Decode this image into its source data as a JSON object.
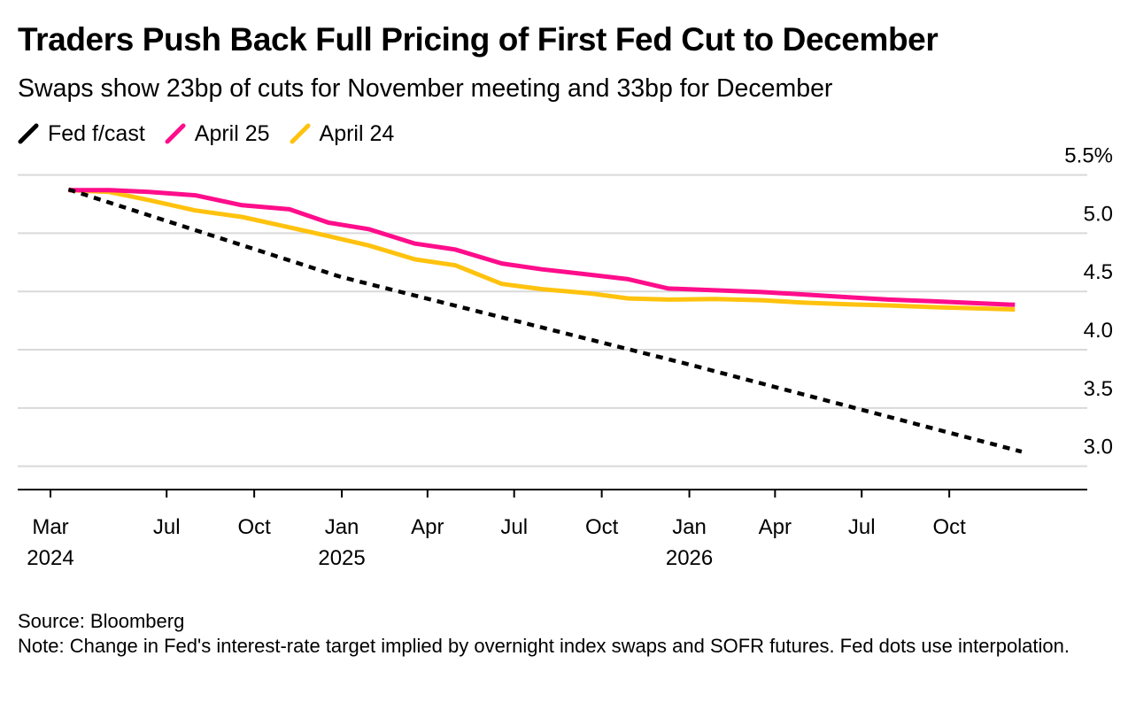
{
  "title": "Traders Push Back Full Pricing of First Fed Cut to December",
  "subtitle": "Swaps show 23bp of cuts for November meeting and 33bp for December",
  "legend": [
    {
      "label": "Fed f/cast",
      "color": "#000000",
      "style": "dashed"
    },
    {
      "label": "April 25",
      "color": "#ff0d8b",
      "style": "solid"
    },
    {
      "label": "April 24",
      "color": "#ffc20e",
      "style": "solid"
    }
  ],
  "footer": {
    "source": "Source: Bloomberg",
    "note": "Note: Change in Fed's interest-rate target implied by overnight index swaps and SOFR futures. Fed dots use interpolation."
  },
  "chart_data": {
    "type": "line",
    "x_axis": {
      "type": "date",
      "range": [
        "2024-03-01",
        "2026-12-31"
      ],
      "ticks": [
        {
          "date": "2024-03-01",
          "label": "Mar",
          "year": "2024"
        },
        {
          "date": "2024-07-01",
          "label": "Jul",
          "year": ""
        },
        {
          "date": "2024-10-01",
          "label": "Oct",
          "year": ""
        },
        {
          "date": "2025-01-01",
          "label": "Jan",
          "year": "2025"
        },
        {
          "date": "2025-04-01",
          "label": "Apr",
          "year": ""
        },
        {
          "date": "2025-07-01",
          "label": "Jul",
          "year": ""
        },
        {
          "date": "2025-10-01",
          "label": "Oct",
          "year": ""
        },
        {
          "date": "2026-01-01",
          "label": "Jan",
          "year": "2026"
        },
        {
          "date": "2026-04-01",
          "label": "Apr",
          "year": ""
        },
        {
          "date": "2026-07-01",
          "label": "Jul",
          "year": ""
        },
        {
          "date": "2026-10-01",
          "label": "Oct",
          "year": ""
        }
      ]
    },
    "y_axis": {
      "range": [
        2.8,
        5.6
      ],
      "ticks": [
        {
          "value": 5.5,
          "label": "5.5%"
        },
        {
          "value": 5.0,
          "label": "5.0"
        },
        {
          "value": 4.5,
          "label": "4.5"
        },
        {
          "value": 4.0,
          "label": "4.0"
        },
        {
          "value": 3.5,
          "label": "3.5"
        },
        {
          "value": 3.0,
          "label": "3.0"
        }
      ],
      "position": "right",
      "grid": true
    },
    "series": [
      {
        "name": "Fed f/cast",
        "color": "#000000",
        "dashed": true,
        "points": [
          [
            "2024-03-20",
            5.375
          ],
          [
            "2024-12-31",
            4.625
          ],
          [
            "2025-12-31",
            3.875
          ],
          [
            "2026-12-16",
            3.125
          ]
        ]
      },
      {
        "name": "April 25",
        "color": "#ff0d8b",
        "dashed": false,
        "points": [
          [
            "2024-03-20",
            5.37
          ],
          [
            "2024-05-01",
            5.37
          ],
          [
            "2024-06-12",
            5.355
          ],
          [
            "2024-07-31",
            5.325
          ],
          [
            "2024-09-18",
            5.24
          ],
          [
            "2024-11-07",
            5.205
          ],
          [
            "2024-12-18",
            5.09
          ],
          [
            "2025-01-29",
            5.035
          ],
          [
            "2025-03-19",
            4.91
          ],
          [
            "2025-04-30",
            4.86
          ],
          [
            "2025-06-18",
            4.74
          ],
          [
            "2025-07-30",
            4.69
          ],
          [
            "2025-09-17",
            4.645
          ],
          [
            "2025-10-29",
            4.605
          ],
          [
            "2025-12-10",
            4.525
          ],
          [
            "2026-01-28",
            4.51
          ],
          [
            "2026-03-18",
            4.495
          ],
          [
            "2026-04-29",
            4.475
          ],
          [
            "2026-06-17",
            4.45
          ],
          [
            "2026-07-29",
            4.43
          ],
          [
            "2026-09-16",
            4.415
          ],
          [
            "2026-10-28",
            4.4
          ],
          [
            "2026-12-09",
            4.385
          ]
        ]
      },
      {
        "name": "April 24",
        "color": "#ffc20e",
        "dashed": false,
        "points": [
          [
            "2024-03-20",
            5.37
          ],
          [
            "2024-05-01",
            5.355
          ],
          [
            "2024-06-12",
            5.285
          ],
          [
            "2024-07-31",
            5.195
          ],
          [
            "2024-09-18",
            5.14
          ],
          [
            "2024-11-07",
            5.05
          ],
          [
            "2024-12-18",
            4.975
          ],
          [
            "2025-01-29",
            4.895
          ],
          [
            "2025-03-19",
            4.775
          ],
          [
            "2025-04-30",
            4.725
          ],
          [
            "2025-06-18",
            4.565
          ],
          [
            "2025-07-30",
            4.52
          ],
          [
            "2025-09-17",
            4.485
          ],
          [
            "2025-10-29",
            4.44
          ],
          [
            "2025-12-10",
            4.43
          ],
          [
            "2026-01-28",
            4.435
          ],
          [
            "2026-03-18",
            4.425
          ],
          [
            "2026-04-29",
            4.405
          ],
          [
            "2026-06-17",
            4.39
          ],
          [
            "2026-07-29",
            4.38
          ],
          [
            "2026-09-16",
            4.365
          ],
          [
            "2026-10-28",
            4.355
          ],
          [
            "2026-12-09",
            4.345
          ]
        ]
      }
    ]
  }
}
